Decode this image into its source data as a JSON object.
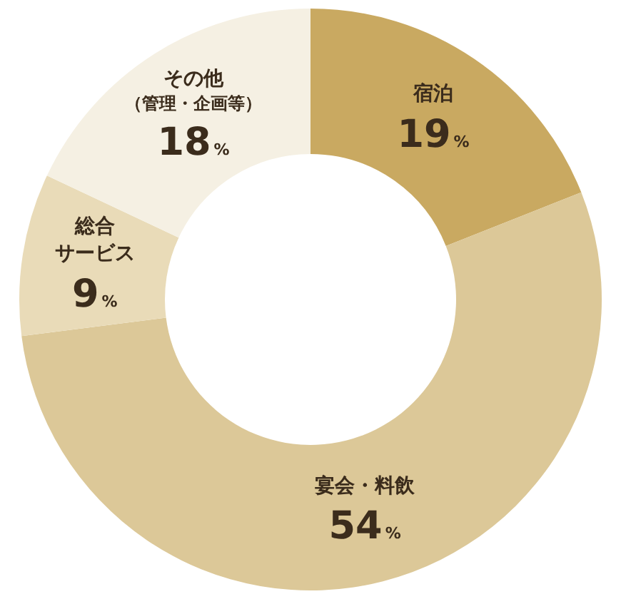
{
  "chart_data": {
    "type": "donut",
    "categories": [
      "宿泊",
      "宴会・料飲",
      "総合サービス",
      "その他（管理・企画等）"
    ],
    "values": [
      19,
      54,
      9,
      18
    ],
    "colors": [
      "#c9a961",
      "#dcc898",
      "#e9dbb8",
      "#f5f0e3"
    ],
    "value_labels": [
      "19%",
      "54%",
      "9%",
      "18%"
    ],
    "legend": false
  }
}
